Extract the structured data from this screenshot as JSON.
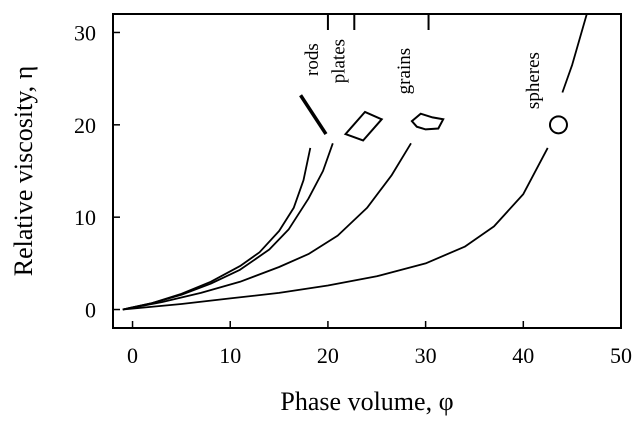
{
  "chart_data": {
    "type": "line",
    "title": "",
    "xlabel": "Phase volume, φ",
    "ylabel": "Relative viscosity, η",
    "xlim": [
      -2,
      50
    ],
    "ylim": [
      -2,
      32
    ],
    "xticks": [
      0,
      10,
      20,
      30,
      40,
      50
    ],
    "yticks": [
      0,
      10,
      20,
      30
    ],
    "grid": false,
    "legend": "none",
    "series": [
      {
        "name": "rods",
        "shape_icon": "rod-icon",
        "points": [
          [
            -1,
            0
          ],
          [
            2,
            0.7
          ],
          [
            5,
            1.7
          ],
          [
            8,
            3.0
          ],
          [
            11,
            4.7
          ],
          [
            13,
            6.2
          ],
          [
            15,
            8.5
          ],
          [
            16.5,
            11.0
          ],
          [
            17.5,
            14.0
          ],
          [
            18.2,
            17.5
          ]
        ]
      },
      {
        "name": "plates",
        "shape_icon": "plate-icon",
        "points": [
          [
            -1,
            0
          ],
          [
            2,
            0.7
          ],
          [
            5,
            1.6
          ],
          [
            8,
            2.8
          ],
          [
            11,
            4.3
          ],
          [
            14,
            6.5
          ],
          [
            16,
            8.7
          ],
          [
            18,
            12.0
          ],
          [
            19.5,
            15.0
          ],
          [
            20.5,
            18.0
          ]
        ]
      },
      {
        "name": "grains",
        "shape_icon": "grain-icon",
        "points": [
          [
            -1,
            0
          ],
          [
            3,
            0.8
          ],
          [
            7,
            1.8
          ],
          [
            11,
            3.0
          ],
          [
            15,
            4.6
          ],
          [
            18,
            6.0
          ],
          [
            21,
            8.0
          ],
          [
            24,
            11.0
          ],
          [
            26.5,
            14.5
          ],
          [
            28.5,
            18.0
          ]
        ]
      },
      {
        "name": "spheres",
        "shape_icon": "sphere-icon",
        "points": [
          [
            -1,
            0
          ],
          [
            5,
            0.6
          ],
          [
            10,
            1.2
          ],
          [
            15,
            1.8
          ],
          [
            20,
            2.6
          ],
          [
            25,
            3.6
          ],
          [
            30,
            5.0
          ],
          [
            34,
            6.8
          ],
          [
            37,
            9.0
          ],
          [
            40,
            12.5
          ],
          [
            42.5,
            17.5
          ]
        ]
      },
      {
        "name": "",
        "points": [
          [
            44,
            23.5
          ],
          [
            45,
            26.5
          ],
          [
            46.5,
            32
          ]
        ]
      }
    ],
    "top_marks": [
      20,
      22.7,
      30.3
    ]
  }
}
